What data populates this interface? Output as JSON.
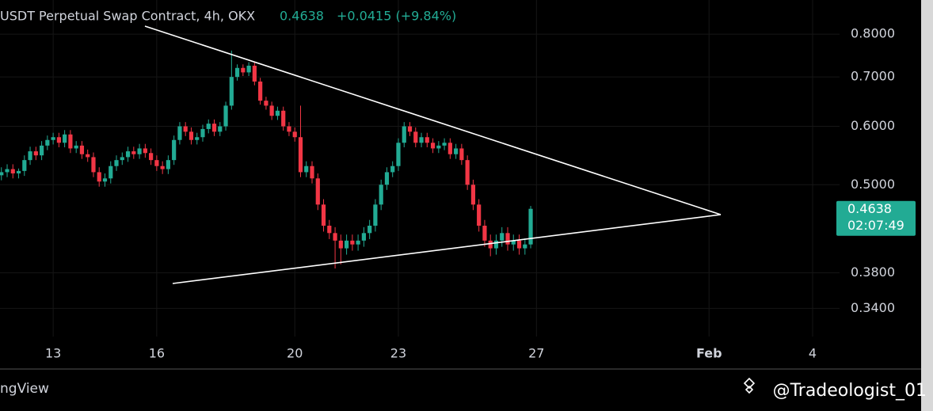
{
  "chart_data": {
    "type": "candlestick",
    "title": "USDT Perpetual Swap Contract, 4h, OKX",
    "change": "+0.0415 (+9.84%)",
    "countdown": "02:07:49",
    "footer_left": "ngView",
    "watermark": "@Tradeologist_01",
    "log_scale": true,
    "grid": true,
    "up_color": "#22ab94",
    "down_color": "#f23645",
    "xlim": [
      11.46,
      35.78
    ],
    "ylim": [
      0.282,
      0.89
    ],
    "xticks": [
      13,
      16,
      20,
      23,
      27,
      {
        "value": 32,
        "label": "Feb"
      },
      {
        "value": 35,
        "label": "4"
      }
    ],
    "yticks": [
      {
        "value": 0.34,
        "label": "0.3400"
      },
      {
        "value": 0.38,
        "label": "0.3800"
      },
      {
        "value": 0.5,
        "label": "0.5000"
      },
      {
        "value": 0.6,
        "label": "0.6000"
      },
      {
        "value": 0.7,
        "label": "0.7000"
      },
      {
        "value": 0.8,
        "label": "0.8000"
      }
    ],
    "x": [
      11.5,
      11.667,
      11.833,
      12,
      12.167,
      12.333,
      12.5,
      12.667,
      12.833,
      13,
      13.167,
      13.333,
      13.5,
      13.667,
      13.833,
      14,
      14.167,
      14.333,
      14.5,
      14.667,
      14.833,
      15,
      15.167,
      15.333,
      15.5,
      15.667,
      15.833,
      16,
      16.167,
      16.333,
      16.5,
      16.667,
      16.833,
      17,
      17.167,
      17.333,
      17.5,
      17.667,
      17.833,
      18,
      18.167,
      18.333,
      18.5,
      18.667,
      18.833,
      19,
      19.167,
      19.333,
      19.5,
      19.667,
      19.833,
      20,
      20.167,
      20.333,
      20.5,
      20.667,
      20.833,
      21,
      21.167,
      21.333,
      21.5,
      21.667,
      21.833,
      22,
      22.167,
      22.333,
      22.5,
      22.667,
      22.833,
      23,
      23.167,
      23.333,
      23.5,
      23.667,
      23.833,
      24,
      24.167,
      24.333,
      24.5,
      24.667,
      24.833,
      25,
      25.167,
      25.333,
      25.5,
      25.667,
      25.833,
      26,
      26.167,
      26.333,
      26.5,
      26.667,
      26.833
    ],
    "open": [
      0.515,
      0.52,
      0.525,
      0.518,
      0.522,
      0.54,
      0.555,
      0.548,
      0.565,
      0.575,
      0.58,
      0.57,
      0.585,
      0.56,
      0.565,
      0.55,
      0.545,
      0.52,
      0.505,
      0.51,
      0.53,
      0.54,
      0.545,
      0.555,
      0.55,
      0.56,
      0.552,
      0.54,
      0.53,
      0.525,
      0.54,
      0.575,
      0.6,
      0.59,
      0.575,
      0.58,
      0.595,
      0.605,
      0.59,
      0.6,
      0.64,
      0.7,
      0.72,
      0.71,
      0.725,
      0.69,
      0.65,
      0.64,
      0.62,
      0.63,
      0.6,
      0.59,
      0.58,
      0.52,
      0.53,
      0.51,
      0.47,
      0.44,
      0.43,
      0.42,
      0.41,
      0.42,
      0.415,
      0.42,
      0.43,
      0.44,
      0.47,
      0.5,
      0.52,
      0.53,
      0.57,
      0.6,
      0.59,
      0.57,
      0.58,
      0.57,
      0.56,
      0.565,
      0.57,
      0.55,
      0.56,
      0.54,
      0.5,
      0.47,
      0.44,
      0.42,
      0.41,
      0.42,
      0.43,
      0.415,
      0.42,
      0.41,
      0.415
    ],
    "high": [
      0.528,
      0.533,
      0.533,
      0.526,
      0.548,
      0.563,
      0.563,
      0.573,
      0.583,
      0.588,
      0.588,
      0.593,
      0.593,
      0.573,
      0.573,
      0.558,
      0.553,
      0.528,
      0.518,
      0.538,
      0.548,
      0.553,
      0.563,
      0.563,
      0.568,
      0.568,
      0.56,
      0.548,
      0.538,
      0.548,
      0.583,
      0.608,
      0.608,
      0.598,
      0.588,
      0.603,
      0.613,
      0.613,
      0.608,
      0.648,
      0.76,
      0.728,
      0.728,
      0.733,
      0.733,
      0.698,
      0.658,
      0.648,
      0.638,
      0.638,
      0.608,
      0.598,
      0.64,
      0.538,
      0.538,
      0.518,
      0.478,
      0.448,
      0.438,
      0.428,
      0.428,
      0.428,
      0.428,
      0.438,
      0.448,
      0.478,
      0.508,
      0.528,
      0.538,
      0.578,
      0.608,
      0.608,
      0.598,
      0.588,
      0.588,
      0.578,
      0.573,
      0.578,
      0.578,
      0.568,
      0.568,
      0.548,
      0.508,
      0.478,
      0.448,
      0.428,
      0.428,
      0.438,
      0.438,
      0.428,
      0.428,
      0.423,
      0.468
    ],
    "low": [
      0.507,
      0.512,
      0.51,
      0.51,
      0.514,
      0.532,
      0.54,
      0.54,
      0.557,
      0.567,
      0.562,
      0.562,
      0.552,
      0.552,
      0.542,
      0.537,
      0.512,
      0.497,
      0.497,
      0.502,
      0.522,
      0.532,
      0.537,
      0.542,
      0.542,
      0.544,
      0.532,
      0.522,
      0.517,
      0.517,
      0.532,
      0.567,
      0.582,
      0.567,
      0.567,
      0.572,
      0.587,
      0.582,
      0.582,
      0.592,
      0.632,
      0.692,
      0.702,
      0.702,
      0.682,
      0.642,
      0.632,
      0.612,
      0.612,
      0.592,
      0.582,
      0.572,
      0.512,
      0.512,
      0.502,
      0.462,
      0.432,
      0.422,
      0.385,
      0.39,
      0.402,
      0.407,
      0.407,
      0.412,
      0.422,
      0.432,
      0.462,
      0.492,
      0.512,
      0.522,
      0.562,
      0.582,
      0.562,
      0.562,
      0.562,
      0.552,
      0.552,
      0.557,
      0.542,
      0.542,
      0.532,
      0.492,
      0.462,
      0.432,
      0.412,
      0.4,
      0.402,
      0.412,
      0.407,
      0.407,
      0.402,
      0.402,
      0.41
    ],
    "close": [
      0.52,
      0.525,
      0.518,
      0.522,
      0.54,
      0.555,
      0.548,
      0.565,
      0.575,
      0.58,
      0.57,
      0.585,
      0.56,
      0.565,
      0.55,
      0.545,
      0.52,
      0.505,
      0.51,
      0.53,
      0.54,
      0.545,
      0.555,
      0.55,
      0.56,
      0.552,
      0.54,
      0.53,
      0.525,
      0.54,
      0.575,
      0.6,
      0.59,
      0.575,
      0.58,
      0.595,
      0.605,
      0.59,
      0.6,
      0.64,
      0.7,
      0.72,
      0.71,
      0.725,
      0.69,
      0.65,
      0.64,
      0.62,
      0.63,
      0.6,
      0.59,
      0.58,
      0.52,
      0.53,
      0.51,
      0.47,
      0.44,
      0.43,
      0.42,
      0.41,
      0.42,
      0.415,
      0.42,
      0.43,
      0.44,
      0.47,
      0.5,
      0.52,
      0.53,
      0.57,
      0.6,
      0.59,
      0.57,
      0.58,
      0.57,
      0.56,
      0.565,
      0.57,
      0.55,
      0.56,
      0.54,
      0.5,
      0.47,
      0.44,
      0.42,
      0.41,
      0.42,
      0.43,
      0.415,
      0.42,
      0.41,
      0.415,
      0.4638
    ]
  }
}
